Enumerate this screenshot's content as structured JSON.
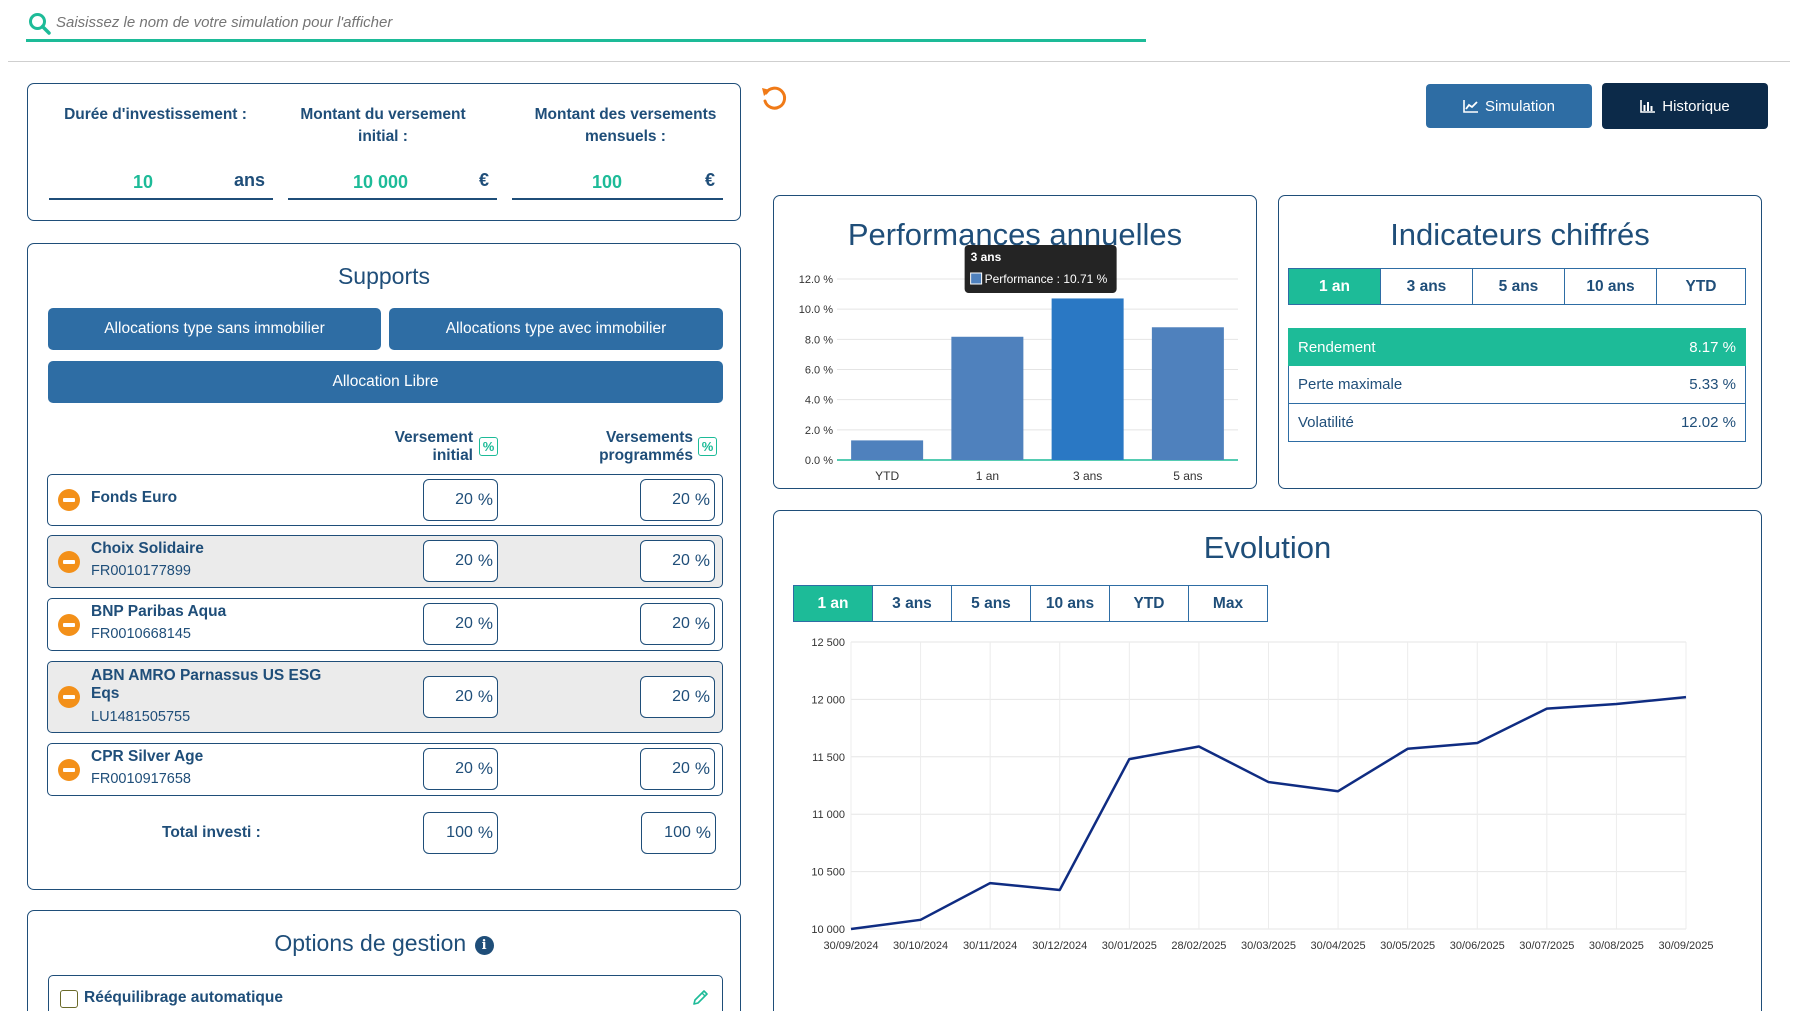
{
  "search": {
    "placeholder": "Saisissez le nom de votre simulation pour l'afficher",
    "icon": "search-icon"
  },
  "params": {
    "duree": {
      "label": "Durée d'investissement :",
      "value": "10",
      "unit": "ans"
    },
    "initial": {
      "label": "Montant du versement initial :",
      "value": "10 000",
      "unit": "€"
    },
    "mensuel": {
      "label": "Montant des versements mensuels :",
      "value": "100",
      "unit": "€"
    }
  },
  "buttons": {
    "simulation": "Simulation",
    "historique": "Historique"
  },
  "supports": {
    "title": "Supports",
    "alloc_sans": "Allocations type sans immobilier",
    "alloc_avec": "Allocations type avec immobilier",
    "alloc_libre": "Allocation Libre",
    "col_initial": "Versement initial",
    "col_programmes": "Versements programmés",
    "pct_icon": "%",
    "pct_sign": "%",
    "funds": [
      {
        "name": "Fonds Euro",
        "isin": "",
        "initial": "20",
        "programmes": "20"
      },
      {
        "name": "Choix Solidaire",
        "isin": "FR0010177899",
        "initial": "20",
        "programmes": "20"
      },
      {
        "name": "BNP Paribas Aqua",
        "isin": "FR0010668145",
        "initial": "20",
        "programmes": "20"
      },
      {
        "name": "ABN AMRO Parnassus US ESG Eqs",
        "isin": "LU1481505755",
        "initial": "20",
        "programmes": "20"
      },
      {
        "name": "CPR Silver Age",
        "isin": "FR0010917658",
        "initial": "20",
        "programmes": "20"
      }
    ],
    "total_label": "Total investi :",
    "total_initial": "100",
    "total_programmes": "100"
  },
  "options": {
    "title": "Options de gestion",
    "reequilibrage": "Rééquilibrage automatique"
  },
  "performances": {
    "title": "Performances annuelles",
    "tooltip_title": "3 ans",
    "tooltip_text": "Performance : 10.71 %"
  },
  "indicateurs": {
    "title": "Indicateurs chiffrés",
    "tabs": [
      "1 an",
      "3 ans",
      "5 ans",
      "10 ans",
      "YTD"
    ],
    "rows": [
      {
        "label": "Rendement",
        "value": "8.17 %"
      },
      {
        "label": "Perte maximale",
        "value": "5.33 %"
      },
      {
        "label": "Volatilité",
        "value": "12.02 %"
      }
    ]
  },
  "evolution": {
    "title": "Evolution",
    "tabs": [
      "1 an",
      "3 ans",
      "5 ans",
      "10 ans",
      "YTD",
      "Max"
    ]
  },
  "colors": {
    "accent": "#1dbb98",
    "primary": "#2e6da4",
    "dark": "#0c2a49",
    "text": "#1f4e79",
    "warning": "#f39019",
    "line": "#0f2c82"
  },
  "chart_data": [
    {
      "type": "bar",
      "title": "Performances annuelles",
      "categories": [
        "YTD",
        "1 an",
        "3 ans",
        "5 ans"
      ],
      "values": [
        1.3,
        8.17,
        10.71,
        8.8
      ],
      "ylim": [
        0,
        12
      ],
      "yticks": [
        0,
        2,
        4,
        6,
        8,
        10,
        12
      ],
      "ytick_labels": [
        "0.0 %",
        "2.0 %",
        "4.0 %",
        "6.0 %",
        "8.0 %",
        "10.0 %",
        "12.0 %"
      ],
      "highlight_index": 2
    },
    {
      "type": "line",
      "title": "Evolution",
      "x": [
        "30/09/2024",
        "30/10/2024",
        "30/11/2024",
        "30/12/2024",
        "30/01/2025",
        "28/02/2025",
        "30/03/2025",
        "30/04/2025",
        "30/05/2025",
        "30/06/2025",
        "30/07/2025",
        "30/08/2025",
        "30/09/2025"
      ],
      "values": [
        10000,
        10080,
        10400,
        10340,
        11480,
        11590,
        11280,
        11200,
        11570,
        11620,
        11920,
        11960,
        12020
      ],
      "ylim": [
        10000,
        12500
      ],
      "yticks": [
        10000,
        10500,
        11000,
        11500,
        12000,
        12500
      ],
      "ytick_labels": [
        "10 000",
        "10 500",
        "11 000",
        "11 500",
        "12 000",
        "12 500"
      ]
    }
  ]
}
